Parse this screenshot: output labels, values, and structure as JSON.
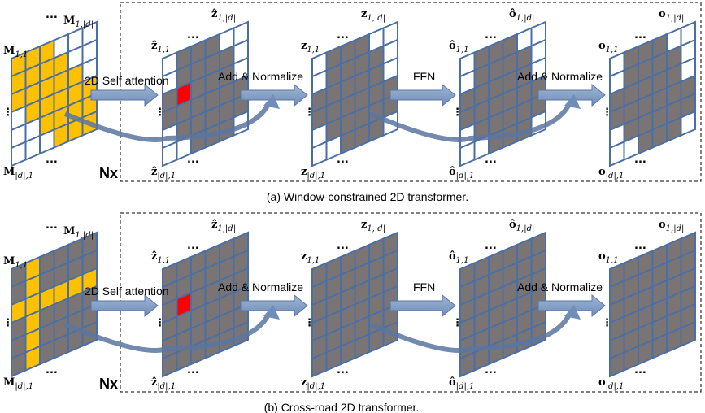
{
  "colors": {
    "grid_line": "#4A6FA5",
    "active_cell": "#7A7574",
    "query_cell": "#FF0000",
    "input_highlight": "#FFC000",
    "arrow_fill": "#7A96BF",
    "box_border": "#000000"
  },
  "panels": [
    {
      "name": "window-constrained",
      "caption": "(a) Window-constrained 2D transformer.",
      "repeat_label": "Nx",
      "input_labels": {
        "top_left": "M",
        "top_left_sub": "1,1",
        "top_right": "M",
        "top_right_sub": "1,|d|",
        "bottom_left": "M",
        "bottom_left_sub": "|d|,1"
      },
      "ops": [
        "2D Self attention",
        "Add & Normalize",
        "FFN",
        "Add & Normalize"
      ],
      "grids": [
        {
          "label": "ẑ",
          "sub_tl": "1,1",
          "sub_tr": "1,|d|",
          "sub_bl": "|d|,1"
        },
        {
          "label": "z",
          "sub_tl": "1,1",
          "sub_tr": "1,|d|",
          "sub_bl": "|d|,1"
        },
        {
          "label": "ô",
          "sub_tl": "1,1",
          "sub_tr": "1,|d|",
          "sub_bl": "|d|,1"
        },
        {
          "label": "o",
          "sub_tl": "1,1",
          "sub_tr": "1,|d|",
          "sub_bl": "|d|,1"
        }
      ]
    },
    {
      "name": "cross-road",
      "caption": "(b) Cross-road 2D transformer.",
      "repeat_label": "Nx",
      "input_labels": {
        "top_left": "M",
        "top_left_sub": "1,1",
        "top_right": "M",
        "top_right_sub": "1,|d|",
        "bottom_left": "M",
        "bottom_left_sub": "|d|,1"
      },
      "ops": [
        "2D Self attention",
        "Add & Normalize",
        "FFN",
        "Add & Normalize"
      ],
      "grids": [
        {
          "label": "ẑ",
          "sub_tl": "1,1",
          "sub_tr": "1,|d|",
          "sub_bl": "|d|,1"
        },
        {
          "label": "z",
          "sub_tl": "1,1",
          "sub_tr": "1,|d|",
          "sub_bl": "|d|,1"
        },
        {
          "label": "ô",
          "sub_tl": "1,1",
          "sub_tr": "1,|d|",
          "sub_bl": "|d|,1"
        },
        {
          "label": "o",
          "sub_tl": "1,1",
          "sub_tr": "1,|d|",
          "sub_bl": "|d|,1"
        }
      ]
    }
  ],
  "ellipsis": "...",
  "vertical_ellipsis": "⋮",
  "window_pattern": [
    [
      0,
      1,
      1,
      1,
      0,
      0
    ],
    [
      0,
      1,
      1,
      1,
      1,
      0
    ],
    [
      1,
      1,
      1,
      1,
      1,
      0
    ],
    [
      1,
      1,
      1,
      1,
      1,
      1
    ],
    [
      0,
      1,
      1,
      1,
      1,
      1
    ],
    [
      0,
      0,
      1,
      1,
      1,
      0
    ]
  ],
  "window_input_pattern": [
    [
      1,
      1,
      1,
      0,
      0,
      0
    ],
    [
      1,
      1,
      1,
      1,
      0,
      0
    ],
    [
      1,
      1,
      1,
      1,
      1,
      0
    ],
    [
      0,
      1,
      1,
      1,
      1,
      1
    ],
    [
      0,
      0,
      1,
      1,
      1,
      1
    ],
    [
      0,
      0,
      0,
      1,
      1,
      1
    ]
  ],
  "cross_input_pattern": [
    [
      0,
      1,
      0,
      0,
      0,
      0
    ],
    [
      0,
      1,
      0,
      0,
      0,
      0
    ],
    [
      1,
      1,
      1,
      1,
      1,
      1
    ],
    [
      0,
      1,
      0,
      0,
      0,
      0
    ],
    [
      0,
      1,
      0,
      0,
      0,
      0
    ],
    [
      0,
      1,
      0,
      0,
      0,
      0
    ]
  ]
}
